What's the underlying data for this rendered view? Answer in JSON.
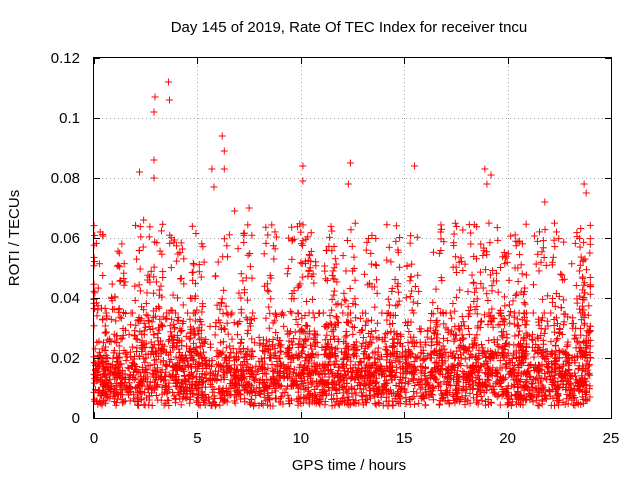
{
  "chart_data": {
    "type": "scatter",
    "title": "Day 145 of 2019, Rate Of TEC Index for receiver tncu",
    "xlabel": "GPS time / hours",
    "ylabel": "ROTI / TECUs",
    "xlim": [
      0,
      25
    ],
    "ylim": [
      0,
      0.12
    ],
    "xticks": [
      "0",
      "5",
      "10",
      "15",
      "20",
      "25"
    ],
    "yticks": [
      "0",
      "0.02",
      "0.04",
      "0.06",
      "0.08",
      "0.1",
      "0.12"
    ],
    "grid": true,
    "marker": "+",
    "color": "#ff0000",
    "series": [
      {
        "name": "ROTI",
        "note": "dense scatter of roughly 5-minute ROTI samples spanning 0-24 h; baseline about 0.005-0.025 TECU/s, frequent spikes to 0.04-0.07",
        "peaks": [
          {
            "x": 0.3,
            "y": 0.062
          },
          {
            "x": 2.2,
            "y": 0.082
          },
          {
            "x": 2.4,
            "y": 0.066
          },
          {
            "x": 2.9,
            "y": 0.102
          },
          {
            "x": 2.95,
            "y": 0.107
          },
          {
            "x": 2.9,
            "y": 0.086
          },
          {
            "x": 2.9,
            "y": 0.08
          },
          {
            "x": 3.6,
            "y": 0.112
          },
          {
            "x": 3.65,
            "y": 0.106
          },
          {
            "x": 5.7,
            "y": 0.083
          },
          {
            "x": 5.8,
            "y": 0.077
          },
          {
            "x": 6.2,
            "y": 0.094
          },
          {
            "x": 6.3,
            "y": 0.089
          },
          {
            "x": 6.3,
            "y": 0.083
          },
          {
            "x": 6.8,
            "y": 0.069
          },
          {
            "x": 7.5,
            "y": 0.07
          },
          {
            "x": 10.1,
            "y": 0.084
          },
          {
            "x": 10.1,
            "y": 0.079
          },
          {
            "x": 12.4,
            "y": 0.085
          },
          {
            "x": 12.3,
            "y": 0.078
          },
          {
            "x": 15.5,
            "y": 0.084
          },
          {
            "x": 18.9,
            "y": 0.083
          },
          {
            "x": 19.0,
            "y": 0.078
          },
          {
            "x": 19.2,
            "y": 0.081
          },
          {
            "x": 21.8,
            "y": 0.072
          },
          {
            "x": 23.7,
            "y": 0.078
          },
          {
            "x": 23.8,
            "y": 0.075
          }
        ]
      }
    ]
  }
}
